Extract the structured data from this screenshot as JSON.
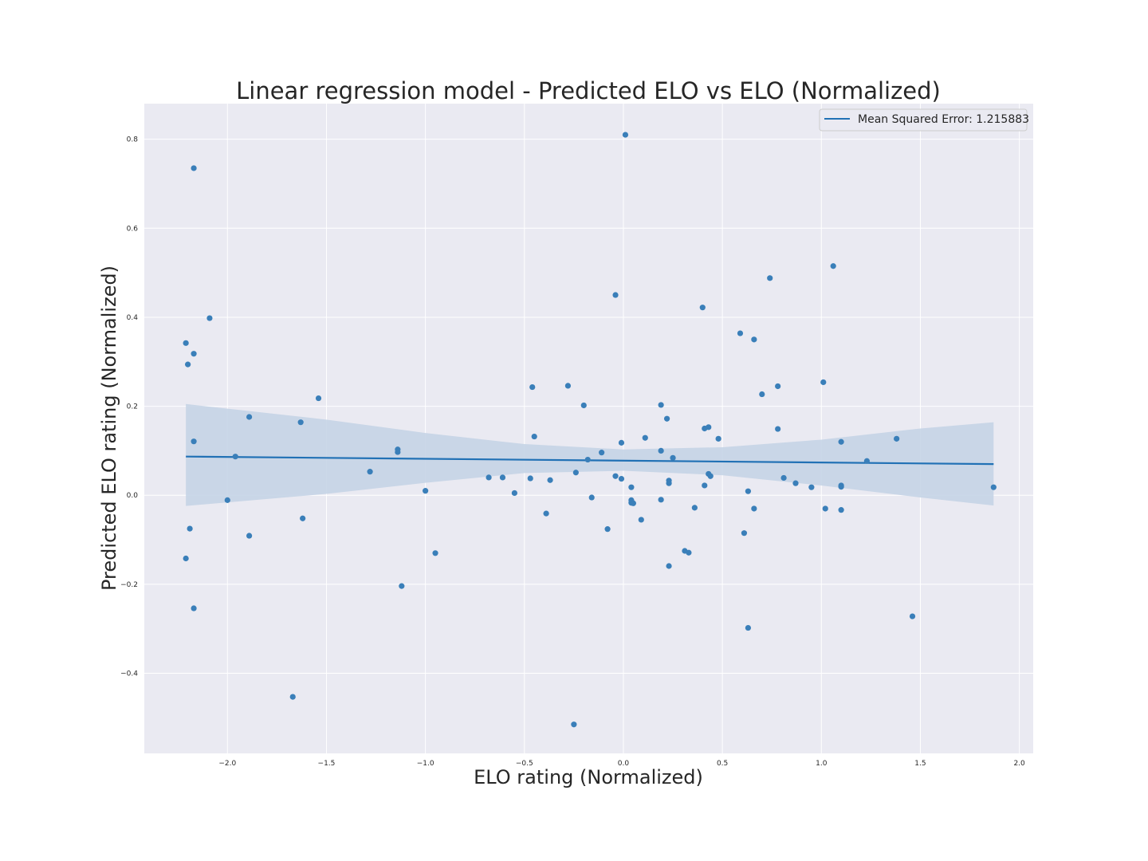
{
  "chart_data": {
    "type": "scatter",
    "title": "Linear regression model - Predicted ELO vs ELO (Normalized)",
    "xlabel": "ELO rating (Normalized)",
    "ylabel": "Predicted ELO rating  (Normalized)",
    "xlim": [
      -2.42,
      2.07
    ],
    "ylim": [
      -0.58,
      0.88
    ],
    "xticks": [
      -2.0,
      -1.5,
      -1.0,
      -0.5,
      0.0,
      0.5,
      1.0,
      1.5,
      2.0
    ],
    "xtick_labels": [
      "−2.0",
      "−1.5",
      "−1.0",
      "−0.5",
      "0.0",
      "0.5",
      "1.0",
      "1.5",
      "2.0"
    ],
    "yticks": [
      -0.4,
      -0.2,
      0.0,
      0.2,
      0.4,
      0.6,
      0.8
    ],
    "ytick_labels": [
      "−0.4",
      "−0.2",
      "0.0",
      "0.2",
      "0.4",
      "0.6",
      "0.8"
    ],
    "grid": true,
    "legend_position": "top-right",
    "legend_label": "Mean Squared Error: 1.215883",
    "colors": {
      "points": "#3a7fb9",
      "line": "#2171b5",
      "band": "#c5d4e5",
      "background": "#eaeaf2",
      "grid": "#ffffff"
    },
    "regression": {
      "x": [
        -2.21,
        1.87
      ],
      "y": [
        0.087,
        0.07
      ]
    },
    "confidence_band": {
      "x": [
        -2.21,
        -1.5,
        -1.0,
        -0.5,
        0.0,
        0.5,
        1.0,
        1.5,
        1.87
      ],
      "upper": [
        0.205,
        0.17,
        0.14,
        0.115,
        0.103,
        0.108,
        0.125,
        0.15,
        0.164
      ],
      "lower": [
        -0.024,
        0.003,
        0.028,
        0.05,
        0.055,
        0.045,
        0.022,
        -0.005,
        -0.023
      ]
    },
    "points": [
      [
        -2.17,
        0.735
      ],
      [
        -2.09,
        0.398
      ],
      [
        -2.21,
        0.342
      ],
      [
        -2.17,
        0.318
      ],
      [
        -2.2,
        0.294
      ],
      [
        -2.17,
        0.121
      ],
      [
        -2.19,
        -0.075
      ],
      [
        -2.21,
        -0.142
      ],
      [
        -2.17,
        -0.254
      ],
      [
        -2.0,
        -0.011
      ],
      [
        -1.96,
        0.087
      ],
      [
        -1.89,
        0.176
      ],
      [
        -1.89,
        -0.091
      ],
      [
        -1.63,
        0.164
      ],
      [
        -1.62,
        -0.052
      ],
      [
        -1.67,
        -0.453
      ],
      [
        -1.54,
        0.218
      ],
      [
        -1.28,
        0.053
      ],
      [
        -1.14,
        0.103
      ],
      [
        -1.14,
        0.097
      ],
      [
        -1.12,
        -0.204
      ],
      [
        -1.0,
        0.01
      ],
      [
        -0.95,
        -0.13
      ],
      [
        -0.68,
        0.04
      ],
      [
        -0.61,
        0.04
      ],
      [
        -0.55,
        0.005
      ],
      [
        -0.47,
        0.038
      ],
      [
        -0.46,
        0.243
      ],
      [
        -0.45,
        0.132
      ],
      [
        -0.39,
        -0.041
      ],
      [
        -0.37,
        0.034
      ],
      [
        -0.28,
        0.246
      ],
      [
        -0.24,
        0.051
      ],
      [
        -0.25,
        -0.515
      ],
      [
        -0.2,
        0.202
      ],
      [
        -0.18,
        0.08
      ],
      [
        -0.16,
        -0.005
      ],
      [
        -0.11,
        0.096
      ],
      [
        -0.08,
        -0.076
      ],
      [
        -0.04,
        0.45
      ],
      [
        -0.04,
        0.043
      ],
      [
        -0.01,
        0.118
      ],
      [
        -0.01,
        0.037
      ],
      [
        0.01,
        0.81
      ],
      [
        0.04,
        0.018
      ],
      [
        0.04,
        -0.011
      ],
      [
        0.04,
        -0.017
      ],
      [
        0.05,
        -0.018
      ],
      [
        0.09,
        -0.055
      ],
      [
        0.11,
        0.129
      ],
      [
        0.19,
        0.203
      ],
      [
        0.19,
        0.1
      ],
      [
        0.19,
        -0.01
      ],
      [
        0.22,
        0.172
      ],
      [
        0.23,
        0.033
      ],
      [
        0.23,
        0.027
      ],
      [
        0.23,
        -0.159
      ],
      [
        0.25,
        0.084
      ],
      [
        0.31,
        -0.125
      ],
      [
        0.33,
        -0.129
      ],
      [
        0.36,
        -0.028
      ],
      [
        0.4,
        0.422
      ],
      [
        0.41,
        0.15
      ],
      [
        0.43,
        0.153
      ],
      [
        0.41,
        0.022
      ],
      [
        0.43,
        0.048
      ],
      [
        0.44,
        0.043
      ],
      [
        0.48,
        0.127
      ],
      [
        0.59,
        0.364
      ],
      [
        0.61,
        -0.085
      ],
      [
        0.63,
        0.009
      ],
      [
        0.63,
        -0.298
      ],
      [
        0.66,
        0.35
      ],
      [
        0.66,
        -0.03
      ],
      [
        0.7,
        0.227
      ],
      [
        0.74,
        0.488
      ],
      [
        0.78,
        0.245
      ],
      [
        0.78,
        0.149
      ],
      [
        0.81,
        0.039
      ],
      [
        0.87,
        0.027
      ],
      [
        0.95,
        0.018
      ],
      [
        1.01,
        0.254
      ],
      [
        1.02,
        -0.03
      ],
      [
        1.06,
        0.515
      ],
      [
        1.1,
        0.12
      ],
      [
        1.1,
        0.022
      ],
      [
        1.1,
        0.019
      ],
      [
        1.1,
        -0.033
      ],
      [
        1.23,
        0.077
      ],
      [
        1.38,
        0.127
      ],
      [
        1.46,
        -0.272
      ],
      [
        1.87,
        0.018
      ]
    ]
  }
}
